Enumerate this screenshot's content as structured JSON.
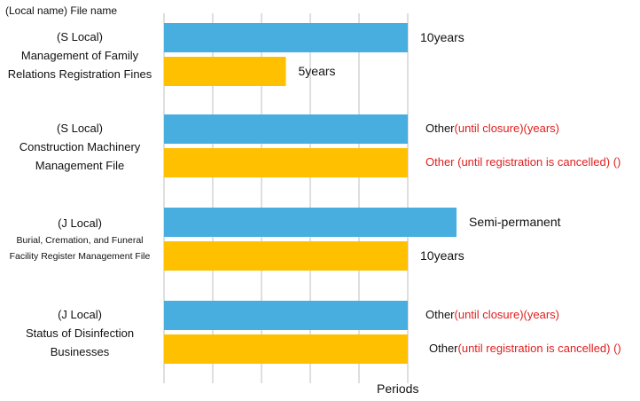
{
  "chart_data": {
    "type": "bar",
    "orientation": "horizontal",
    "header": "(Local name) File name",
    "xlabel": "Periods",
    "grid": true,
    "colors": {
      "series_a": "#48aee0",
      "series_b": "#ffc000",
      "note_red": "#e01e1e"
    },
    "categories": [
      {
        "lines": [
          "(S Local)",
          "Management of Family",
          "Relations Registration Fines"
        ],
        "bars": [
          {
            "value": 10,
            "label": "10years",
            "label_red": ""
          },
          {
            "value": 5,
            "label": "5years",
            "label_red": ""
          }
        ]
      },
      {
        "lines": [
          "(S Local)",
          "Construction Machinery",
          "Management File"
        ],
        "bars": [
          {
            "value": 10,
            "label": "Other",
            "label_red": "(until closure)(years)"
          },
          {
            "value": 10,
            "label": "",
            "label_red": "Other (until registration is cancelled) ()"
          }
        ]
      },
      {
        "lines": [
          "(J Local)",
          "Burial, Cremation, and Funeral",
          "Facility Register Management File"
        ],
        "bars": [
          {
            "value": 12,
            "label": "Semi-permanent",
            "label_red": ""
          },
          {
            "value": 10,
            "label": "10years",
            "label_red": ""
          }
        ]
      },
      {
        "lines": [
          "(J Local)",
          "Status of Disinfection",
          "Businesses"
        ],
        "bars": [
          {
            "value": 10,
            "label": "Other",
            "label_red": "(until closure)(years)"
          },
          {
            "value": 10,
            "label": "Other",
            "label_red": "(until registration is cancelled) ()"
          }
        ]
      }
    ]
  }
}
